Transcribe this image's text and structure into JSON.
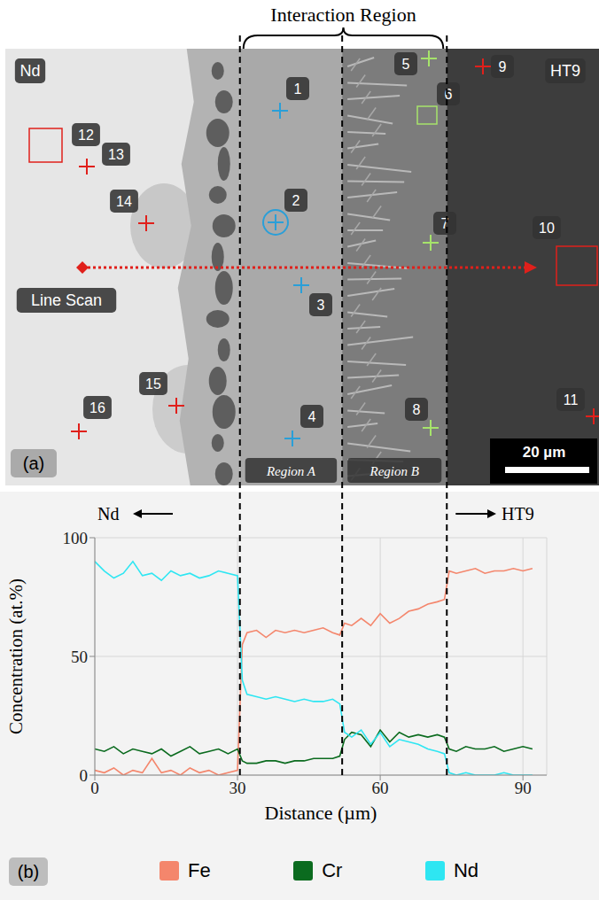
{
  "panel_a": {
    "title": "Interaction Region",
    "left_material": "Nd",
    "right_material": "HT9",
    "line_scan": "Line Scan",
    "regions": [
      "Region A",
      "Region B"
    ],
    "scale_bar": "20 µm",
    "panel_label": "(a)",
    "points": [
      "1",
      "2",
      "3",
      "4",
      "5",
      "6",
      "7",
      "8",
      "9",
      "10",
      "11",
      "12",
      "13",
      "14",
      "15",
      "16"
    ]
  },
  "chart_data": {
    "type": "line",
    "panel_label": "(b)",
    "x_label": "Distance (µm)",
    "y_label": "Concentration (at.%)",
    "annotations": [
      "Nd",
      "HT9"
    ],
    "x": [
      0,
      2,
      4,
      6,
      8,
      10,
      12,
      14,
      16,
      18,
      20,
      22,
      24,
      26,
      28,
      30,
      31,
      32,
      34,
      36,
      38,
      40,
      42,
      44,
      46,
      48,
      50,
      51.5,
      52.5,
      54,
      56,
      58,
      60,
      62,
      64,
      66,
      68,
      70,
      72,
      73.5,
      74.5,
      76,
      78,
      80,
      82,
      84,
      86,
      88,
      90,
      92
    ],
    "series": [
      {
        "name": "Fe",
        "color": "#f4866c",
        "values": [
          2,
          1,
          3,
          0,
          2,
          1,
          7,
          1,
          2,
          0,
          3,
          1,
          2,
          0,
          1,
          2,
          55,
          60,
          61,
          58,
          61,
          60,
          61,
          60,
          61,
          62,
          60,
          59,
          64,
          63,
          66,
          63,
          68,
          64,
          66,
          69,
          70,
          72,
          73,
          74,
          86,
          85,
          86,
          87,
          85,
          86,
          86,
          87,
          86,
          87
        ]
      },
      {
        "name": "Cr",
        "color": "#0b6b1f",
        "values": [
          11,
          10,
          12,
          9,
          11,
          10,
          9,
          11,
          8,
          10,
          12,
          9,
          10,
          11,
          9,
          11,
          6,
          5,
          5,
          6,
          6,
          5,
          6,
          6,
          7,
          7,
          7,
          8,
          15,
          18,
          17,
          12,
          19,
          14,
          18,
          16,
          17,
          16,
          17,
          16,
          11,
          10,
          12,
          11,
          11,
          12,
          10,
          11,
          12,
          11
        ]
      },
      {
        "name": "Nd",
        "color": "#2ee6f2",
        "values": [
          90,
          86,
          83,
          85,
          90,
          84,
          85,
          82,
          86,
          84,
          85,
          83,
          84,
          86,
          85,
          84,
          40,
          34,
          33,
          32,
          33,
          32,
          31,
          32,
          31,
          31,
          32,
          30,
          18,
          16,
          19,
          13,
          18,
          12,
          15,
          14,
          13,
          11,
          10,
          9,
          1,
          0,
          1,
          0,
          0,
          0,
          1,
          0,
          0,
          0
        ]
      }
    ],
    "region_boundaries": [
      30.5,
      52,
      74
    ],
    "xlim": [
      0,
      95
    ],
    "xticks": [
      0,
      30,
      60,
      90
    ],
    "ylim": [
      0,
      100
    ],
    "yticks": [
      0,
      50,
      100
    ],
    "grid": true,
    "legend": "bottom"
  }
}
